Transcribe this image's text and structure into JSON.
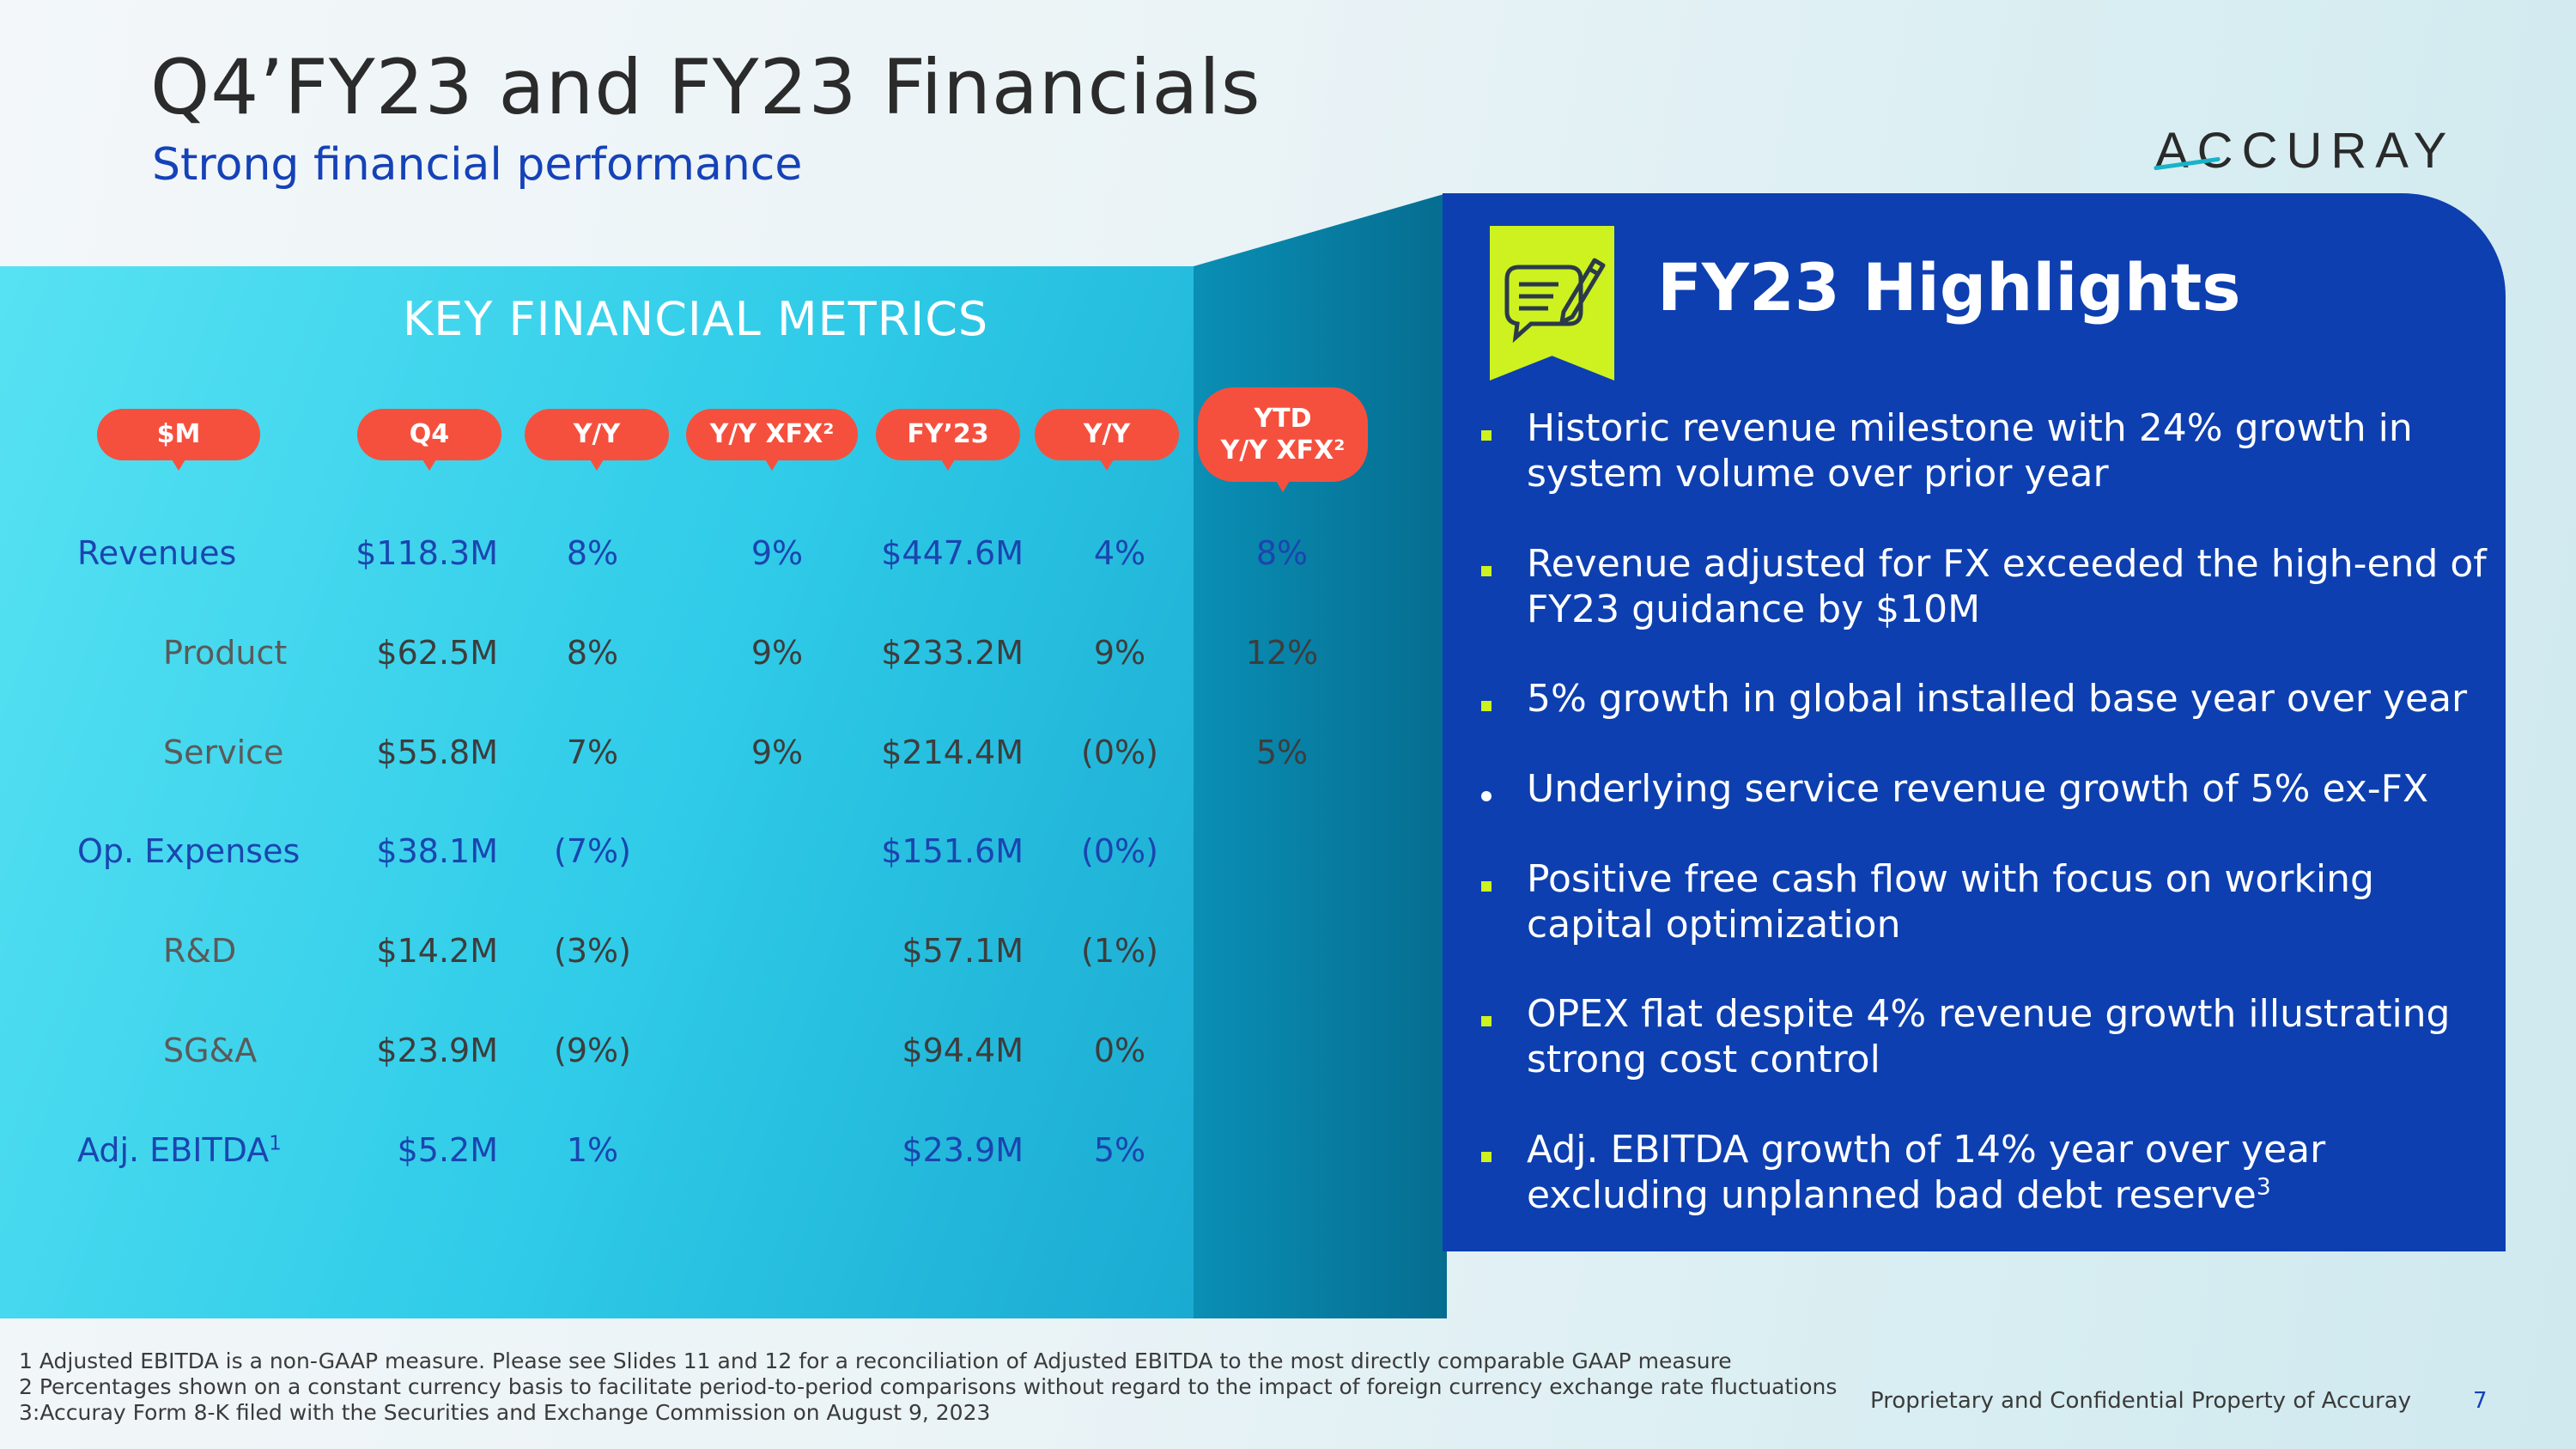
{
  "header": {
    "title": "Q4’FY23 and FY23 Financials",
    "subtitle": "Strong financial performance",
    "logo_text": "ACCURAY"
  },
  "metrics": {
    "title": "KEY FINANCIAL METRICS",
    "columns": [
      "$M",
      "Q4",
      "Y/Y",
      "Y/Y XFX²",
      "FY’23",
      "Y/Y",
      "YTD\nY/Y XFX²"
    ],
    "rows": [
      {
        "label": "Revenues",
        "q4": "$118.3M",
        "yy": "8%",
        "yyxfx": "9%",
        "fy23": "$447.6M",
        "fyyy": "4%",
        "ytd": "8%"
      },
      {
        "label": "Product",
        "q4": "$62.5M",
        "yy": "8%",
        "yyxfx": "9%",
        "fy23": "$233.2M",
        "fyyy": "9%",
        "ytd": "12%"
      },
      {
        "label": "Service",
        "q4": "$55.8M",
        "yy": "7%",
        "yyxfx": "9%",
        "fy23": "$214.4M",
        "fyyy": "(0%)",
        "ytd": "5%"
      },
      {
        "label": "Op. Expenses",
        "q4": "$38.1M",
        "yy": "(7%)",
        "yyxfx": "",
        "fy23": "$151.6M",
        "fyyy": "(0%)",
        "ytd": ""
      },
      {
        "label": "R&D",
        "q4": "$14.2M",
        "yy": "(3%)",
        "yyxfx": "",
        "fy23": "$57.1M",
        "fyyy": "(1%)",
        "ytd": ""
      },
      {
        "label": "SG&A",
        "q4": "$23.9M",
        "yy": "(9%)",
        "yyxfx": "",
        "fy23": "$94.4M",
        "fyyy": "0%",
        "ytd": ""
      },
      {
        "label": "Adj. EBITDA",
        "label_sup": "1",
        "q4": "$5.2M",
        "yy": "1%",
        "yyxfx": "",
        "fy23": "$23.9M",
        "fyyy": "5%",
        "ytd": ""
      }
    ]
  },
  "highlights": {
    "title": "FY23 Highlights",
    "icon": "notepad-pencil-icon",
    "items": [
      {
        "text": "Historic revenue milestone with 24% growth in system volume over prior year"
      },
      {
        "text": "Revenue adjusted for FX exceeded the high-end of FY23 guidance by $10M"
      },
      {
        "text": "5% growth in global installed base year over year"
      },
      {
        "text": "Underlying service revenue growth of 5% ex-FX"
      },
      {
        "text": "Positive free cash flow with focus on working capital optimization"
      },
      {
        "text": "OPEX flat despite 4% revenue growth illustrating strong cost control"
      },
      {
        "text": "Adj. EBITDA growth of 14% year over year excluding unplanned bad debt reserve",
        "sup": "3"
      }
    ]
  },
  "footnotes": [
    "1 Adjusted EBITDA is a non-GAAP measure.  Please see Slides 11 and 12 for a reconciliation of Adjusted EBITDA to the most directly comparable GAAP measure",
    "2 Percentages shown on a constant currency basis to facilitate period-to-period comparisons without regard to the impact of foreign currency exchange rate fluctuations",
    "3:Accuray Form 8-K filed with the Securities and Exchange Commission on August 9, 2023"
  ],
  "footer": {
    "proprietary": "Proprietary and Confidential Property of Accuray",
    "page_number": "7"
  },
  "colors": {
    "title_blue": "#1542b8",
    "pill_red": "#f5503e",
    "panel_blue": "#0d3fb0",
    "accent_lime": "#cdf21f",
    "cyan": "#2fcbe8"
  }
}
